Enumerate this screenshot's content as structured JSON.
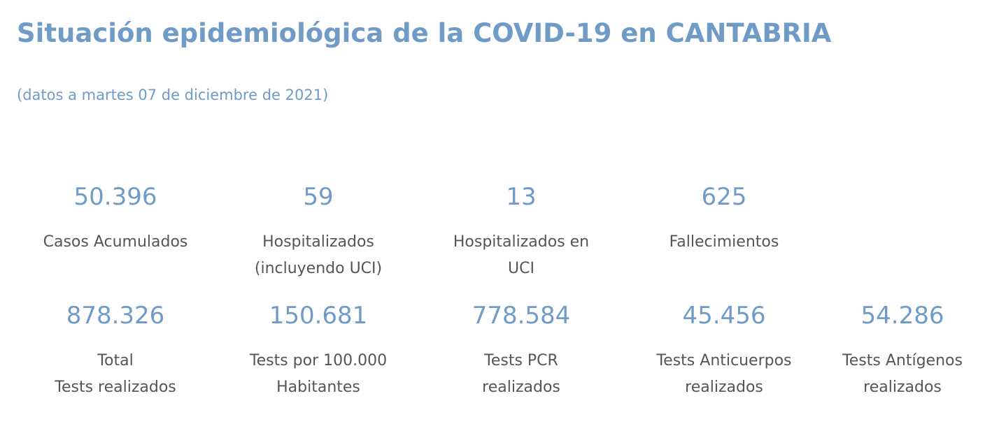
{
  "header": {
    "title": "Situación epidemiológica de la COVID-19 en CANTABRIA",
    "subtitle": "(datos a martes 07 de diciembre de 2021)"
  },
  "stats_row1": [
    {
      "value": "50.396",
      "label": "Casos Acumulados"
    },
    {
      "value": "59",
      "label": "Hospitalizados\n(incluyendo UCI)"
    },
    {
      "value": "13",
      "label": "Hospitalizados en\nUCI"
    },
    {
      "value": "625",
      "label": "Fallecimientos"
    }
  ],
  "stats_row2": [
    {
      "value": "878.326",
      "label": "Total\nTests realizados"
    },
    {
      "value": "150.681",
      "label": "Tests por 100.000\nHabitantes"
    },
    {
      "value": "778.584",
      "label": " Tests PCR\nrealizados"
    },
    {
      "value": "45.456",
      "label": "Tests Anticuerpos\nrealizados"
    },
    {
      "value": "54.286",
      "label": "Tests Antígenos\nrealizados"
    }
  ],
  "colors": {
    "accent": "#6f9bc6",
    "text": "#555555"
  }
}
